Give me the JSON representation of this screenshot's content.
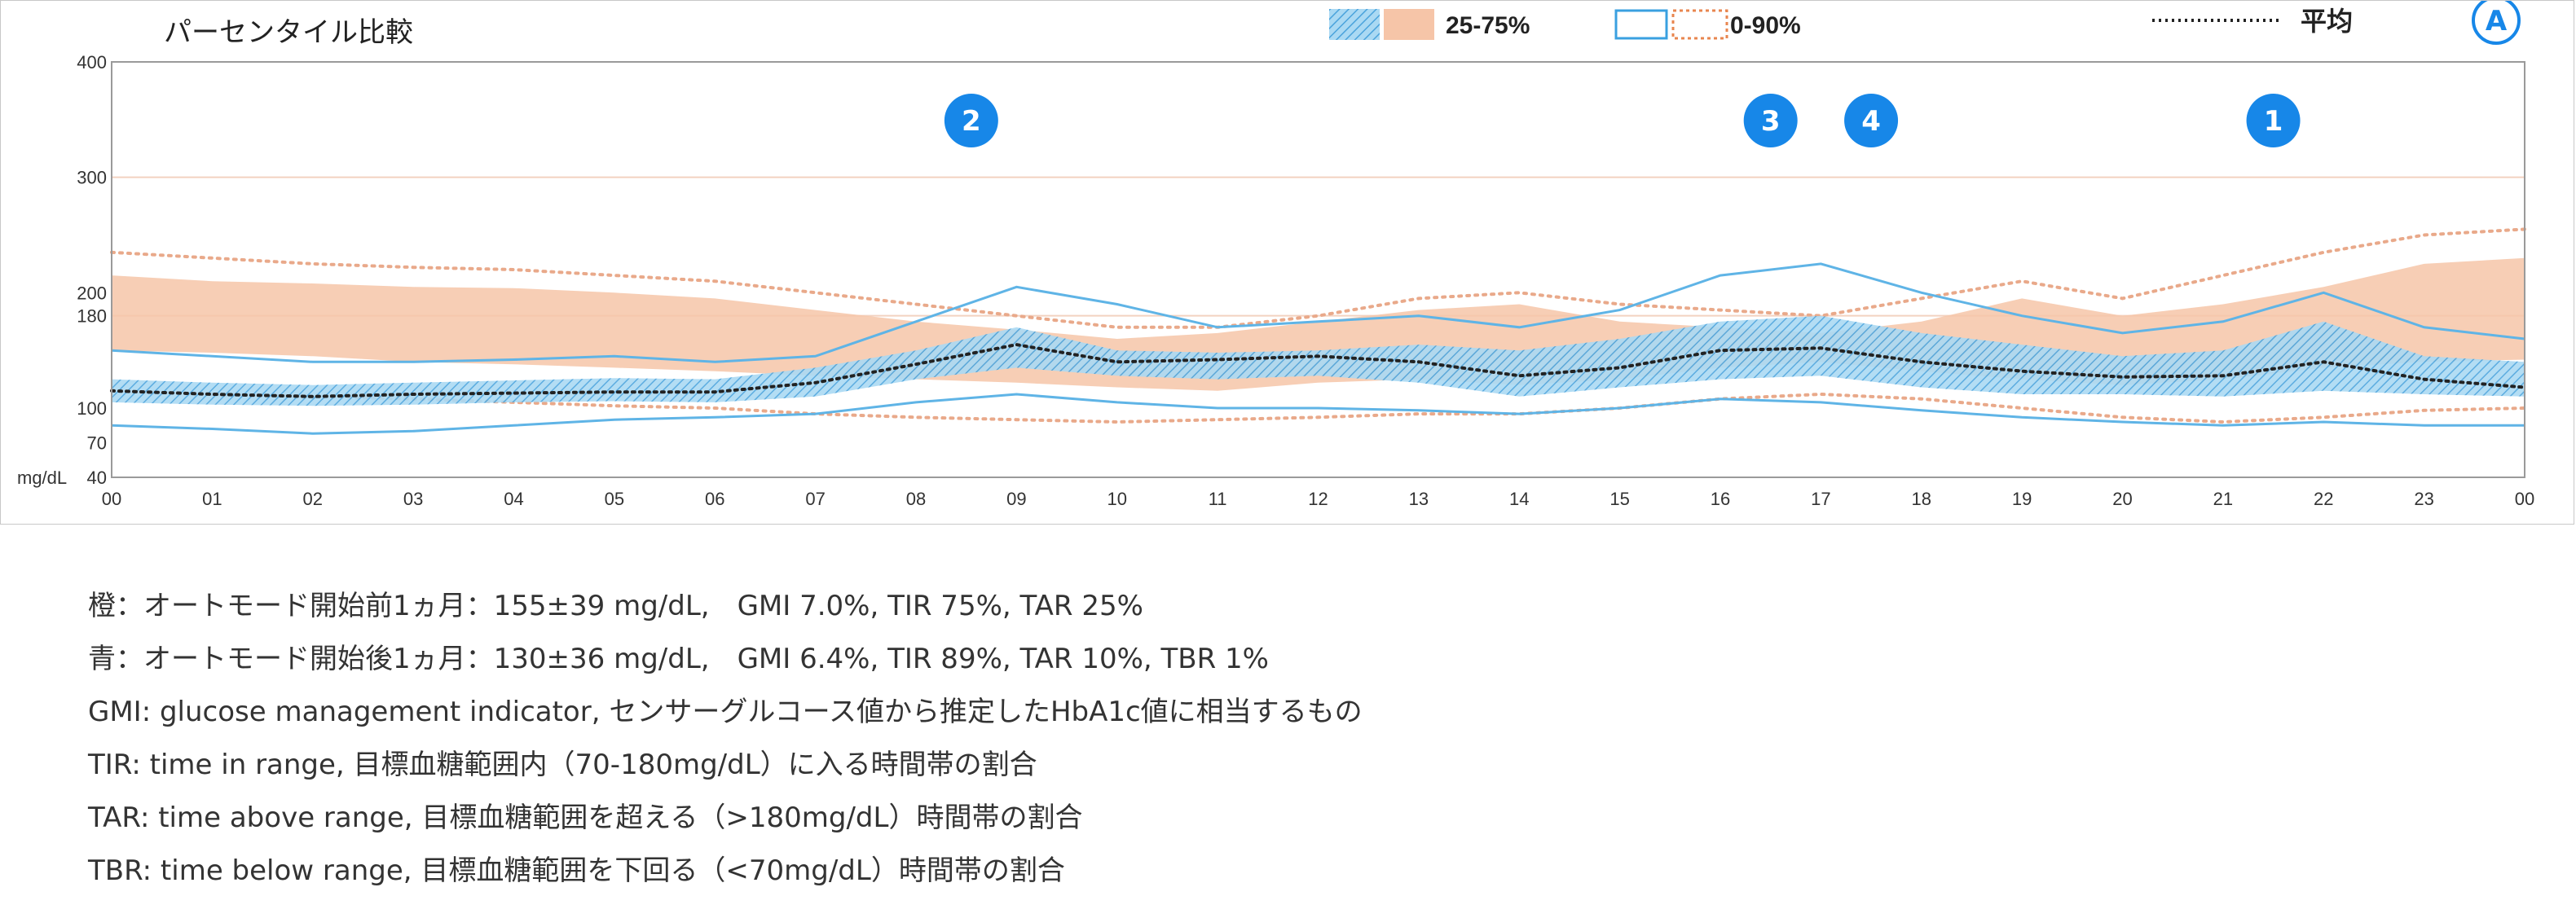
{
  "chart_data": {
    "type": "area",
    "title": "パーセンタイル比較",
    "y_unit_label": "mg/dL",
    "ylim": [
      40,
      400
    ],
    "y_ticks": [
      40,
      70,
      100,
      180,
      200,
      300,
      400
    ],
    "x_ticks": [
      "00",
      "01",
      "02",
      "03",
      "04",
      "05",
      "06",
      "07",
      "08",
      "09",
      "10",
      "11",
      "12",
      "13",
      "14",
      "15",
      "16",
      "17",
      "18",
      "19",
      "20",
      "21",
      "22",
      "23",
      "00"
    ],
    "x_range_hours": [
      0,
      24
    ],
    "reference_lines": [
      180,
      300
    ],
    "legend": {
      "band_25_75": "25-75%",
      "band_0_90": "0-90%",
      "mean": "平均",
      "corner_badge": "A"
    },
    "markers": [
      {
        "label": "2",
        "hour": 8.55
      },
      {
        "label": "3",
        "hour": 16.5
      },
      {
        "label": "4",
        "hour": 17.5
      },
      {
        "label": "1",
        "hour": 21.5
      }
    ],
    "series": [
      {
        "name": "橙",
        "color": "#f6c5a8",
        "hours": [
          0,
          1,
          2,
          3,
          4,
          5,
          6,
          7,
          8,
          9,
          10,
          11,
          12,
          13,
          14,
          15,
          16,
          17,
          18,
          19,
          20,
          21,
          22,
          23,
          24
        ],
        "p25": [
          150,
          148,
          145,
          140,
          138,
          135,
          132,
          128,
          125,
          122,
          118,
          115,
          122,
          125,
          120,
          125,
          135,
          140,
          132,
          125,
          120,
          125,
          135,
          140,
          142
        ],
        "p75": [
          215,
          210,
          208,
          205,
          204,
          200,
          195,
          185,
          175,
          168,
          160,
          165,
          175,
          185,
          190,
          175,
          170,
          165,
          175,
          195,
          180,
          190,
          205,
          225,
          230
        ],
        "p5": [
          115,
          112,
          110,
          108,
          105,
          102,
          100,
          95,
          92,
          90,
          88,
          90,
          92,
          95,
          95,
          100,
          108,
          112,
          108,
          100,
          92,
          88,
          92,
          98,
          100
        ],
        "p90": [
          235,
          230,
          225,
          222,
          220,
          215,
          210,
          200,
          190,
          180,
          170,
          170,
          180,
          195,
          200,
          190,
          185,
          180,
          195,
          210,
          195,
          215,
          235,
          250,
          255
        ],
        "mean_label": "平均"
      },
      {
        "name": "青",
        "color": "#9fd3ef",
        "line_color": "#5fb4e6",
        "hours": [
          0,
          1,
          2,
          3,
          4,
          5,
          6,
          7,
          8,
          9,
          10,
          11,
          12,
          13,
          14,
          15,
          16,
          17,
          18,
          19,
          20,
          21,
          22,
          23,
          24
        ],
        "p25": [
          105,
          103,
          102,
          103,
          105,
          106,
          105,
          110,
          125,
          135,
          128,
          125,
          128,
          122,
          110,
          118,
          125,
          128,
          118,
          112,
          112,
          110,
          115,
          112,
          110
        ],
        "p75": [
          125,
          122,
          120,
          122,
          124,
          126,
          125,
          135,
          150,
          170,
          150,
          148,
          150,
          155,
          150,
          160,
          175,
          180,
          165,
          155,
          145,
          150,
          175,
          145,
          140
        ],
        "p5": [
          85,
          82,
          78,
          80,
          85,
          90,
          92,
          95,
          105,
          112,
          105,
          100,
          100,
          98,
          95,
          100,
          108,
          105,
          98,
          92,
          88,
          85,
          88,
          85,
          85
        ],
        "p90": [
          150,
          145,
          140,
          140,
          142,
          145,
          140,
          145,
          175,
          205,
          190,
          170,
          175,
          180,
          170,
          185,
          215,
          225,
          200,
          180,
          165,
          175,
          200,
          170,
          160
        ],
        "mean": [
          115,
          112,
          110,
          112,
          113,
          114,
          114,
          122,
          138,
          155,
          140,
          142,
          145,
          140,
          128,
          135,
          150,
          152,
          140,
          132,
          127,
          128,
          140,
          125,
          118
        ]
      }
    ]
  },
  "notes": {
    "line1": "橙：オートモード開始前1ヵ月：155±39 mg/dL,　GMI 7.0%, TIR 75%, TAR 25%",
    "line2": "青：オートモード開始後1ヵ月：130±36 mg/dL,　GMI 6.4%, TIR 89%, TAR 10%, TBR 1%",
    "line3": "GMI: glucose management indicator, センサーグルコース値から推定したHbA1c値に相当するもの",
    "line4": "TIR: time in range, 目標血糖範囲内（70-180mg/dL）に入る時間帯の割合",
    "line5": "TAR: time above range, 目標血糖範囲を超える（>180mg/dL）時間帯の割合",
    "line6": "TBR: time below range, 目標血糖範囲を下回る（<70mg/dL）時間帯の割合"
  }
}
